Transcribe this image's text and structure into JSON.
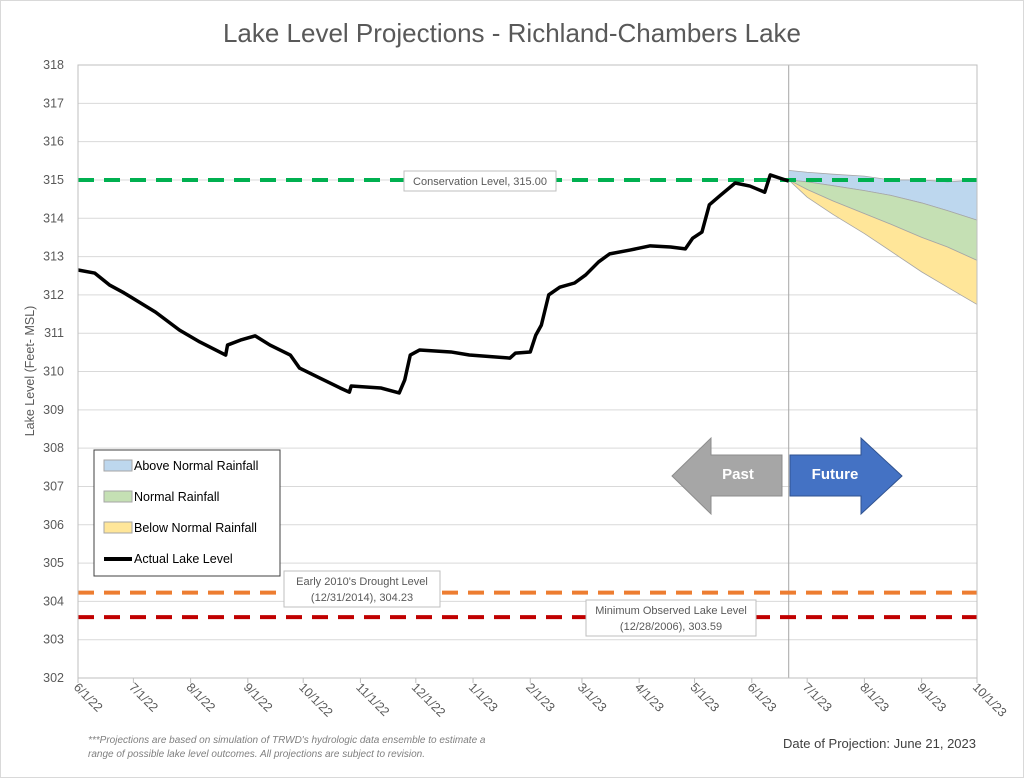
{
  "chart_data": {
    "type": "line",
    "title": "Lake Level Projections - Richland-Chambers Lake",
    "ylabel": "Lake Level (Feet- MSL)",
    "xlabel": "",
    "ylim": [
      302,
      318
    ],
    "xlim": [
      "2022-06-01",
      "2023-10-01"
    ],
    "yticks": [
      "302",
      "303",
      "304",
      "305",
      "306",
      "307",
      "308",
      "309",
      "310",
      "311",
      "312",
      "313",
      "314",
      "315",
      "316",
      "317",
      "318"
    ],
    "xticks": [
      {
        "date": "2022-06-01",
        "label": "6/1/22"
      },
      {
        "date": "2022-07-01",
        "label": "7/1/22"
      },
      {
        "date": "2022-08-01",
        "label": "8/1/22"
      },
      {
        "date": "2022-09-01",
        "label": "9/1/22"
      },
      {
        "date": "2022-10-01",
        "label": "10/1/22"
      },
      {
        "date": "2022-11-01",
        "label": "11/1/22"
      },
      {
        "date": "2022-12-01",
        "label": "12/1/22"
      },
      {
        "date": "2023-01-01",
        "label": "1/1/23"
      },
      {
        "date": "2023-02-01",
        "label": "2/1/23"
      },
      {
        "date": "2023-03-01",
        "label": "3/1/23"
      },
      {
        "date": "2023-04-01",
        "label": "4/1/23"
      },
      {
        "date": "2023-05-01",
        "label": "5/1/23"
      },
      {
        "date": "2023-06-01",
        "label": "6/1/23"
      },
      {
        "date": "2023-07-01",
        "label": "7/1/23"
      },
      {
        "date": "2023-08-01",
        "label": "8/1/23"
      },
      {
        "date": "2023-09-01",
        "label": "9/1/23"
      },
      {
        "date": "2023-10-01",
        "label": "10/1/23"
      }
    ],
    "grid": "horizontal",
    "legend_placement": "bottom-left",
    "legend": [
      "Above Normal Rainfall",
      "Normal Rainfall",
      "Below Normal Rainfall",
      "Actual Lake Level"
    ],
    "actual": {
      "name": "Actual Lake Level",
      "color": "#000000",
      "x": [
        "2022-06-01",
        "2022-06-10",
        "2022-06-18",
        "2022-06-26",
        "2022-07-13",
        "2022-07-26",
        "2022-08-06",
        "2022-08-20",
        "2022-08-21",
        "2022-08-28",
        "2022-09-05",
        "2022-09-13",
        "2022-09-24",
        "2022-09-29",
        "2022-10-10",
        "2022-10-21",
        "2022-10-26",
        "2022-10-27",
        "2022-11-12",
        "2022-11-22",
        "2022-11-25",
        "2022-11-28",
        "2022-12-03",
        "2022-12-20",
        "2022-12-30",
        "2023-01-21",
        "2023-01-24",
        "2023-02-01",
        "2023-02-04",
        "2023-02-07",
        "2023-02-11",
        "2023-02-17",
        "2023-02-25",
        "2023-03-03",
        "2023-03-10",
        "2023-03-16",
        "2023-03-27",
        "2023-04-07",
        "2023-04-18",
        "2023-04-26",
        "2023-04-30",
        "2023-05-05",
        "2023-05-09",
        "2023-05-15",
        "2023-05-23",
        "2023-05-31",
        "2023-06-08",
        "2023-06-11",
        "2023-06-16",
        "2023-06-21"
      ],
      "y": [
        312.65,
        312.57,
        312.26,
        312.05,
        311.55,
        311.08,
        310.77,
        310.43,
        310.69,
        310.82,
        310.93,
        310.69,
        310.43,
        310.09,
        309.83,
        309.57,
        309.46,
        309.62,
        309.57,
        309.44,
        309.78,
        310.43,
        310.56,
        310.51,
        310.43,
        310.35,
        310.48,
        310.51,
        310.95,
        311.21,
        312.0,
        312.2,
        312.31,
        312.52,
        312.86,
        313.07,
        313.17,
        313.28,
        313.25,
        313.2,
        313.48,
        313.64,
        314.35,
        314.6,
        314.92,
        314.84,
        314.68,
        315.13,
        315.05,
        314.97
      ]
    },
    "projection": {
      "x": [
        "2023-06-21",
        "2023-07-01",
        "2023-07-15",
        "2023-08-01",
        "2023-08-15",
        "2023-09-01",
        "2023-09-15",
        "2023-10-01"
      ],
      "above_normal": {
        "name": "Above Normal Rainfall",
        "color": "#BDD7EE",
        "upper": [
          315.25,
          315.2,
          315.15,
          315.1,
          315.0,
          315.0,
          314.95,
          315.0
        ],
        "lower": [
          315.0,
          314.95,
          314.85,
          314.72,
          314.6,
          314.4,
          314.2,
          313.95
        ]
      },
      "normal": {
        "name": "Normal Rainfall",
        "color": "#C5E0B4",
        "upper": [
          315.0,
          314.95,
          314.85,
          314.72,
          314.6,
          314.4,
          314.2,
          313.95
        ],
        "lower": [
          315.0,
          314.75,
          314.45,
          314.12,
          313.85,
          313.5,
          313.25,
          312.9
        ]
      },
      "below_normal": {
        "name": "Below Normal Rainfall",
        "color": "#FFE699",
        "upper": [
          315.0,
          314.75,
          314.45,
          314.12,
          313.85,
          313.5,
          313.25,
          312.9
        ],
        "lower": [
          315.0,
          314.55,
          314.1,
          313.6,
          313.15,
          312.6,
          312.2,
          311.75
        ]
      }
    },
    "reference_lines": [
      {
        "id": "conservation",
        "value": 315.0,
        "color": "#00B050",
        "label_lines": [
          "Conservation Level, 315.00"
        ]
      },
      {
        "id": "drought",
        "value": 304.23,
        "color": "#ED7D31",
        "label_lines": [
          "Early 2010's Drought Level",
          "(12/31/2014), 304.23"
        ]
      },
      {
        "id": "minimum",
        "value": 303.59,
        "color": "#C00000",
        "label_lines": [
          "Minimum Observed Lake Level",
          "(12/28/2006), 303.59"
        ]
      }
    ],
    "projection_date": "2023-06-21",
    "annotations": {
      "past": "Past",
      "future": "Future",
      "past_color": "#A6A6A6",
      "future_color": "#4472C4"
    }
  },
  "footnote": [
    "***Projections are based on simulation of TRWD's hydrologic data ensemble to estimate a",
    "range of possible lake level outcomes.  All projections are subject to revision."
  ],
  "date_of_projection": "Date of Projection: June 21, 2023"
}
